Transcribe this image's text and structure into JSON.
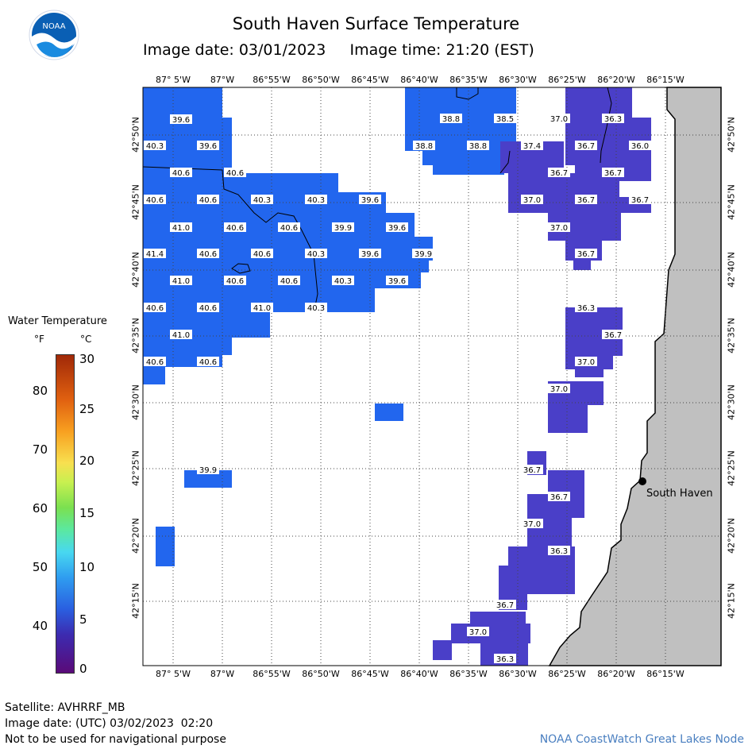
{
  "title": "South Haven Surface Temperature",
  "image_date_label": "Image date: 03/01/2023",
  "image_time_label": "Image time: 21:20 (EST)",
  "logo_text": "NOAA",
  "longitude_labels": [
    "87° 5'W",
    "87°W",
    "86°55'W",
    "86°50'W",
    "86°45'W",
    "86°40'W",
    "86°35'W",
    "86°30'W",
    "86°25'W",
    "86°20'W",
    "86°15'W"
  ],
  "latitude_labels": [
    "42°50'N",
    "42°45'N",
    "42°40'N",
    "42°35'N",
    "42°30'N",
    "42°25'N",
    "42°20'N",
    "42°15'N"
  ],
  "city": "South Haven",
  "legend": {
    "title": "Water Temperature",
    "unit_f": "°F",
    "unit_c": "°C",
    "f_ticks": [
      "80",
      "70",
      "60",
      "50",
      "40"
    ],
    "c_ticks": [
      "30",
      "25",
      "20",
      "15",
      "10",
      "5",
      "0"
    ]
  },
  "temperature_labels": [
    "39.6",
    "40.3",
    "39.6",
    "40.6",
    "40.6",
    "40.6",
    "40.6",
    "40.3",
    "40.3",
    "39.6",
    "41.0",
    "40.6",
    "40.6",
    "39.9",
    "39.6",
    "41.4",
    "40.6",
    "40.6",
    "40.3",
    "39.6",
    "39.9",
    "41.0",
    "40.6",
    "40.6",
    "40.3",
    "39.6",
    "40.6",
    "40.6",
    "41.0",
    "40.3",
    "41.0",
    "40.6",
    "40.6",
    "38.8",
    "38.5",
    "38.8",
    "38.8",
    "37.4",
    "37.0",
    "36.3",
    "36.7",
    "36.0",
    "36.7",
    "36.7",
    "37.0",
    "36.7",
    "36.7",
    "37.0",
    "36.7",
    "36.3",
    "36.7",
    "37.0",
    "37.0",
    "39.9",
    "36.7",
    "36.7",
    "37.0",
    "36.3",
    "36.7",
    "37.0",
    "36.3"
  ],
  "colors": {
    "warm_water": "#2266ee",
    "cold_water": "#4a3fc8",
    "land": "#c0c0c0"
  },
  "footer": {
    "satellite": "Satellite: AVHRRF_MB",
    "utc_date": "Image date: (UTC) 03/02/2023  02:20",
    "warning": "Not to be used for navigational purpose",
    "credit": "NOAA CoastWatch Great Lakes Node"
  }
}
